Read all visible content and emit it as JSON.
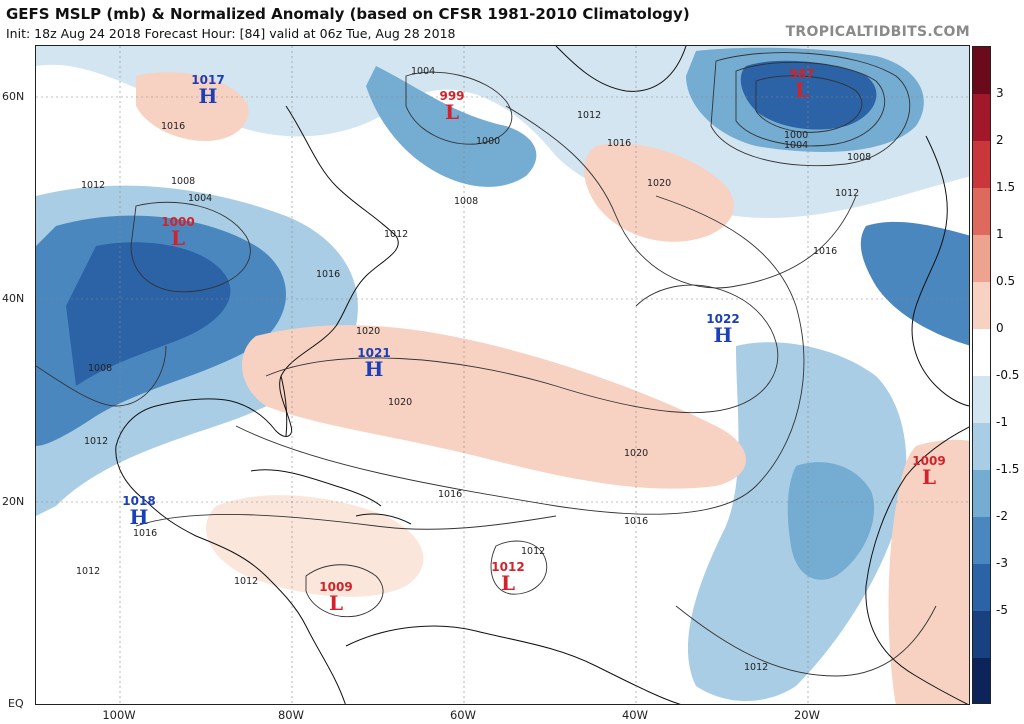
{
  "header": {
    "title": "GEFS MSLP (mb) & Normalized Anomaly (based on CFSR 1981-2010 Climatology)",
    "subtitle": "Init: 18z Aug 24 2018   Forecast Hour: [84]   valid at 06z Tue, Aug 28 2018",
    "credit": "TROPICALTIDBITS.COM"
  },
  "axes": {
    "lat_labels": [
      "60N",
      "40N",
      "20N",
      "EQ"
    ],
    "lon_labels": [
      "100W",
      "80W",
      "60W",
      "40W",
      "20W"
    ]
  },
  "colorbar": {
    "labels": [
      "3",
      "2",
      "1.5",
      "1",
      "0.5",
      "0",
      "-0.5",
      "-1",
      "-1.5",
      "-2",
      "-3",
      "-5"
    ],
    "colors": [
      "#6b0a1a",
      "#a3172a",
      "#c9363c",
      "#de6a5f",
      "#eda38f",
      "#f7d2c2",
      "#ffffff",
      "#d3e5f0",
      "#a8cde4",
      "#74acd2",
      "#4b87bf",
      "#2c62a6",
      "#19407f",
      "#0c2459"
    ]
  },
  "systems": [
    {
      "type": "H",
      "pressure": "1017"
    },
    {
      "type": "L",
      "pressure": "999"
    },
    {
      "type": "L",
      "pressure": "987"
    },
    {
      "type": "L",
      "pressure": "1000"
    },
    {
      "type": "H",
      "pressure": "1021"
    },
    {
      "type": "H",
      "pressure": "1022"
    },
    {
      "type": "H",
      "pressure": "1018"
    },
    {
      "type": "L",
      "pressure": "1009"
    },
    {
      "type": "L",
      "pressure": "1012"
    },
    {
      "type": "L",
      "pressure": "1009"
    }
  ],
  "isobar_labels": [
    "1004",
    "1000",
    "1016",
    "1012",
    "1008",
    "1004",
    "1008",
    "1012",
    "1016",
    "1020",
    "1020",
    "1020",
    "1012",
    "1016",
    "1020",
    "1016",
    "1016",
    "1012",
    "1012",
    "1012",
    "1008",
    "1012",
    "1016",
    "1000",
    "1004",
    "1008",
    "1012",
    "1016",
    "1012"
  ]
}
